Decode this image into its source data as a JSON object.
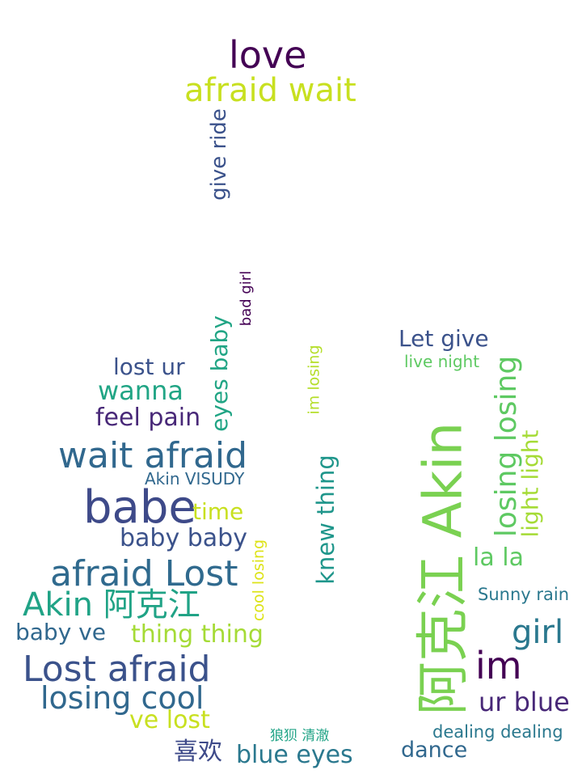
{
  "cloud": {
    "words": [
      {
        "text": "love",
        "color": "#440154"
      },
      {
        "text": "afraid wait",
        "color": "#c8e020"
      },
      {
        "text": "give ride",
        "color": "#3b528b"
      },
      {
        "text": "bad girl",
        "color": "#440154"
      },
      {
        "text": "Let give",
        "color": "#3b528b"
      },
      {
        "text": "live night",
        "color": "#5ec962"
      },
      {
        "text": "lost ur",
        "color": "#3b528b"
      },
      {
        "text": "eyes baby",
        "color": "#21a585"
      },
      {
        "text": "im losing",
        "color": "#b5de2b"
      },
      {
        "text": "wanna",
        "color": "#21a585"
      },
      {
        "text": "feel pain",
        "color": "#482878"
      },
      {
        "text": "wait afraid",
        "color": "#31688e"
      },
      {
        "text": "Akin VISUDY",
        "color": "#31688e"
      },
      {
        "text": "babe",
        "color": "#3e4a89"
      },
      {
        "text": "time",
        "color": "#c8e020"
      },
      {
        "text": "baby baby",
        "color": "#3b528b"
      },
      {
        "text": "cool losing",
        "color": "#dde318"
      },
      {
        "text": "knew thing",
        "color": "#1f968b"
      },
      {
        "text": "afraid Lost",
        "color": "#306a8e"
      },
      {
        "text": "Akin 阿克江",
        "color": "#20a386"
      },
      {
        "text": "baby ve",
        "color": "#31688e"
      },
      {
        "text": "thing thing",
        "color": "#a5db36"
      },
      {
        "text": "Lost afraid",
        "color": "#3b528b"
      },
      {
        "text": "losing cool",
        "color": "#31688e"
      },
      {
        "text": "ve lost",
        "color": "#c8e020"
      },
      {
        "text": "狼狈 清澈",
        "color": "#20a386"
      },
      {
        "text": "喜欢",
        "color": "#3e4a89"
      },
      {
        "text": "blue eyes",
        "color": "#2a788e"
      },
      {
        "text": "阿克江 Akin",
        "color": "#7ad151"
      },
      {
        "text": "losing losing",
        "color": "#5ec962"
      },
      {
        "text": "light light",
        "color": "#a5db36"
      },
      {
        "text": "la la",
        "color": "#5ec962"
      },
      {
        "text": "Sunny rain",
        "color": "#2a788e"
      },
      {
        "text": "girl",
        "color": "#2a788e"
      },
      {
        "text": "im",
        "color": "#440154"
      },
      {
        "text": "ur blue",
        "color": "#482878"
      },
      {
        "text": "dealing dealing",
        "color": "#2a788e"
      },
      {
        "text": "dance",
        "color": "#31688e"
      }
    ]
  }
}
